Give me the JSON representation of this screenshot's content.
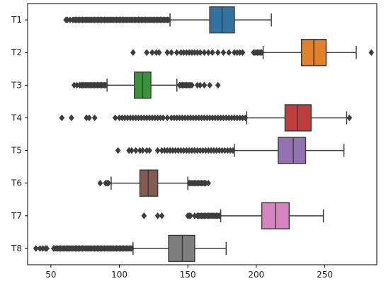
{
  "chart_data": {
    "type": "boxplot",
    "orientation": "horizontal",
    "title": "",
    "xlabel": "",
    "ylabel": "",
    "xlim": [
      33,
      288
    ],
    "x_ticks": [
      50,
      100,
      150,
      200,
      250
    ],
    "x_tick_labels": [
      "50",
      "100",
      "150",
      "200",
      "250"
    ],
    "categories": [
      "T1",
      "T2",
      "T3",
      "T4",
      "T5",
      "T6",
      "T7",
      "T8"
    ],
    "colors": [
      "#3274a1",
      "#e1812c",
      "#3a923a",
      "#c03d3e",
      "#9372b2",
      "#845b53",
      "#d684bd",
      "#7f7f7f"
    ],
    "series": [
      {
        "name": "T1",
        "min": 137,
        "q1": 166,
        "median": 175,
        "q3": 184,
        "max": 211,
        "outliers": [
          61,
          62,
          64,
          66,
          67,
          68,
          69,
          70,
          71,
          72,
          73,
          74,
          75,
          76,
          77,
          78,
          79,
          80,
          81,
          82,
          83,
          84,
          85,
          86,
          87,
          88,
          89,
          90,
          91,
          92,
          93,
          94,
          95,
          96,
          97,
          98,
          99,
          100,
          101,
          102,
          103,
          104,
          105,
          106,
          107,
          108,
          109,
          110,
          111,
          112,
          113,
          114,
          115,
          116,
          117,
          118,
          119,
          120,
          121,
          122,
          123,
          124,
          125,
          126,
          127,
          128,
          129,
          130,
          131,
          132,
          133,
          134,
          135,
          136
        ]
      },
      {
        "name": "T2",
        "min": 205,
        "q1": 233,
        "median": 242,
        "q3": 251,
        "max": 273,
        "outliers": [
          110,
          120,
          124,
          127,
          129,
          135,
          138,
          142,
          145,
          147,
          149,
          151,
          153,
          155,
          157,
          159,
          162,
          165,
          168,
          172,
          176,
          180,
          184,
          186,
          188,
          190,
          198,
          199,
          200,
          201,
          202,
          203,
          204,
          284
        ]
      },
      {
        "name": "T3",
        "min": 91,
        "q1": 111,
        "median": 117,
        "q3": 123,
        "max": 142,
        "outliers": [
          67,
          69,
          71,
          72,
          73,
          74,
          75,
          76,
          77,
          78,
          79,
          80,
          81,
          82,
          83,
          84,
          85,
          86,
          87,
          88,
          89,
          90,
          144,
          145,
          146,
          147,
          148,
          149,
          150,
          151,
          152,
          153,
          157,
          159,
          162,
          166,
          172
        ]
      },
      {
        "name": "T4",
        "min": 193,
        "q1": 221,
        "median": 230,
        "q3": 240,
        "max": 266,
        "outliers": [
          58,
          65,
          76,
          78,
          82,
          97,
          100,
          102,
          104,
          106,
          108,
          110,
          112,
          114,
          116,
          118,
          120,
          122,
          124,
          126,
          128,
          130,
          132,
          135,
          138,
          140,
          142,
          144,
          146,
          148,
          150,
          152,
          154,
          156,
          158,
          160,
          162,
          164,
          166,
          168,
          170,
          172,
          174,
          176,
          178,
          180,
          182,
          184,
          186,
          188,
          190,
          192,
          268
        ]
      },
      {
        "name": "T5",
        "min": 184,
        "q1": 216,
        "median": 227,
        "q3": 236,
        "max": 264,
        "outliers": [
          99,
          107,
          109,
          112,
          115,
          117,
          120,
          122,
          128,
          131,
          133,
          135,
          137,
          139,
          141,
          143,
          145,
          147,
          149,
          151,
          153,
          155,
          157,
          159,
          161,
          163,
          165,
          167,
          169,
          171,
          173,
          175,
          177,
          179,
          181,
          183
        ]
      },
      {
        "name": "T6",
        "min": 94,
        "q1": 115,
        "median": 121,
        "q3": 128,
        "max": 150,
        "outliers": [
          86,
          90,
          91,
          92,
          151,
          152,
          153,
          154,
          155,
          156,
          157,
          158,
          159,
          160,
          161,
          162,
          163,
          165
        ]
      },
      {
        "name": "T7",
        "min": 174,
        "q1": 204,
        "median": 214,
        "q3": 224,
        "max": 249,
        "outliers": [
          118,
          128,
          131,
          150,
          151,
          152,
          155,
          157,
          158,
          159,
          160,
          161,
          162,
          163,
          164,
          165,
          166,
          167,
          168,
          169,
          170,
          171,
          172,
          173
        ]
      },
      {
        "name": "T8",
        "min": 110,
        "q1": 136,
        "median": 146,
        "q3": 155,
        "max": 178,
        "outliers": [
          39,
          42,
          44,
          46,
          47,
          52,
          53,
          54,
          55,
          56,
          57,
          58,
          59,
          60,
          61,
          62,
          63,
          64,
          65,
          66,
          67,
          68,
          69,
          70,
          71,
          72,
          73,
          74,
          75,
          76,
          77,
          78,
          79,
          80,
          81,
          82,
          83,
          84,
          85,
          86,
          87,
          88,
          89,
          90,
          91,
          92,
          93,
          94,
          95,
          96,
          97,
          98,
          99,
          100,
          101,
          102,
          103,
          104,
          105,
          106,
          107,
          108,
          109
        ]
      }
    ]
  }
}
